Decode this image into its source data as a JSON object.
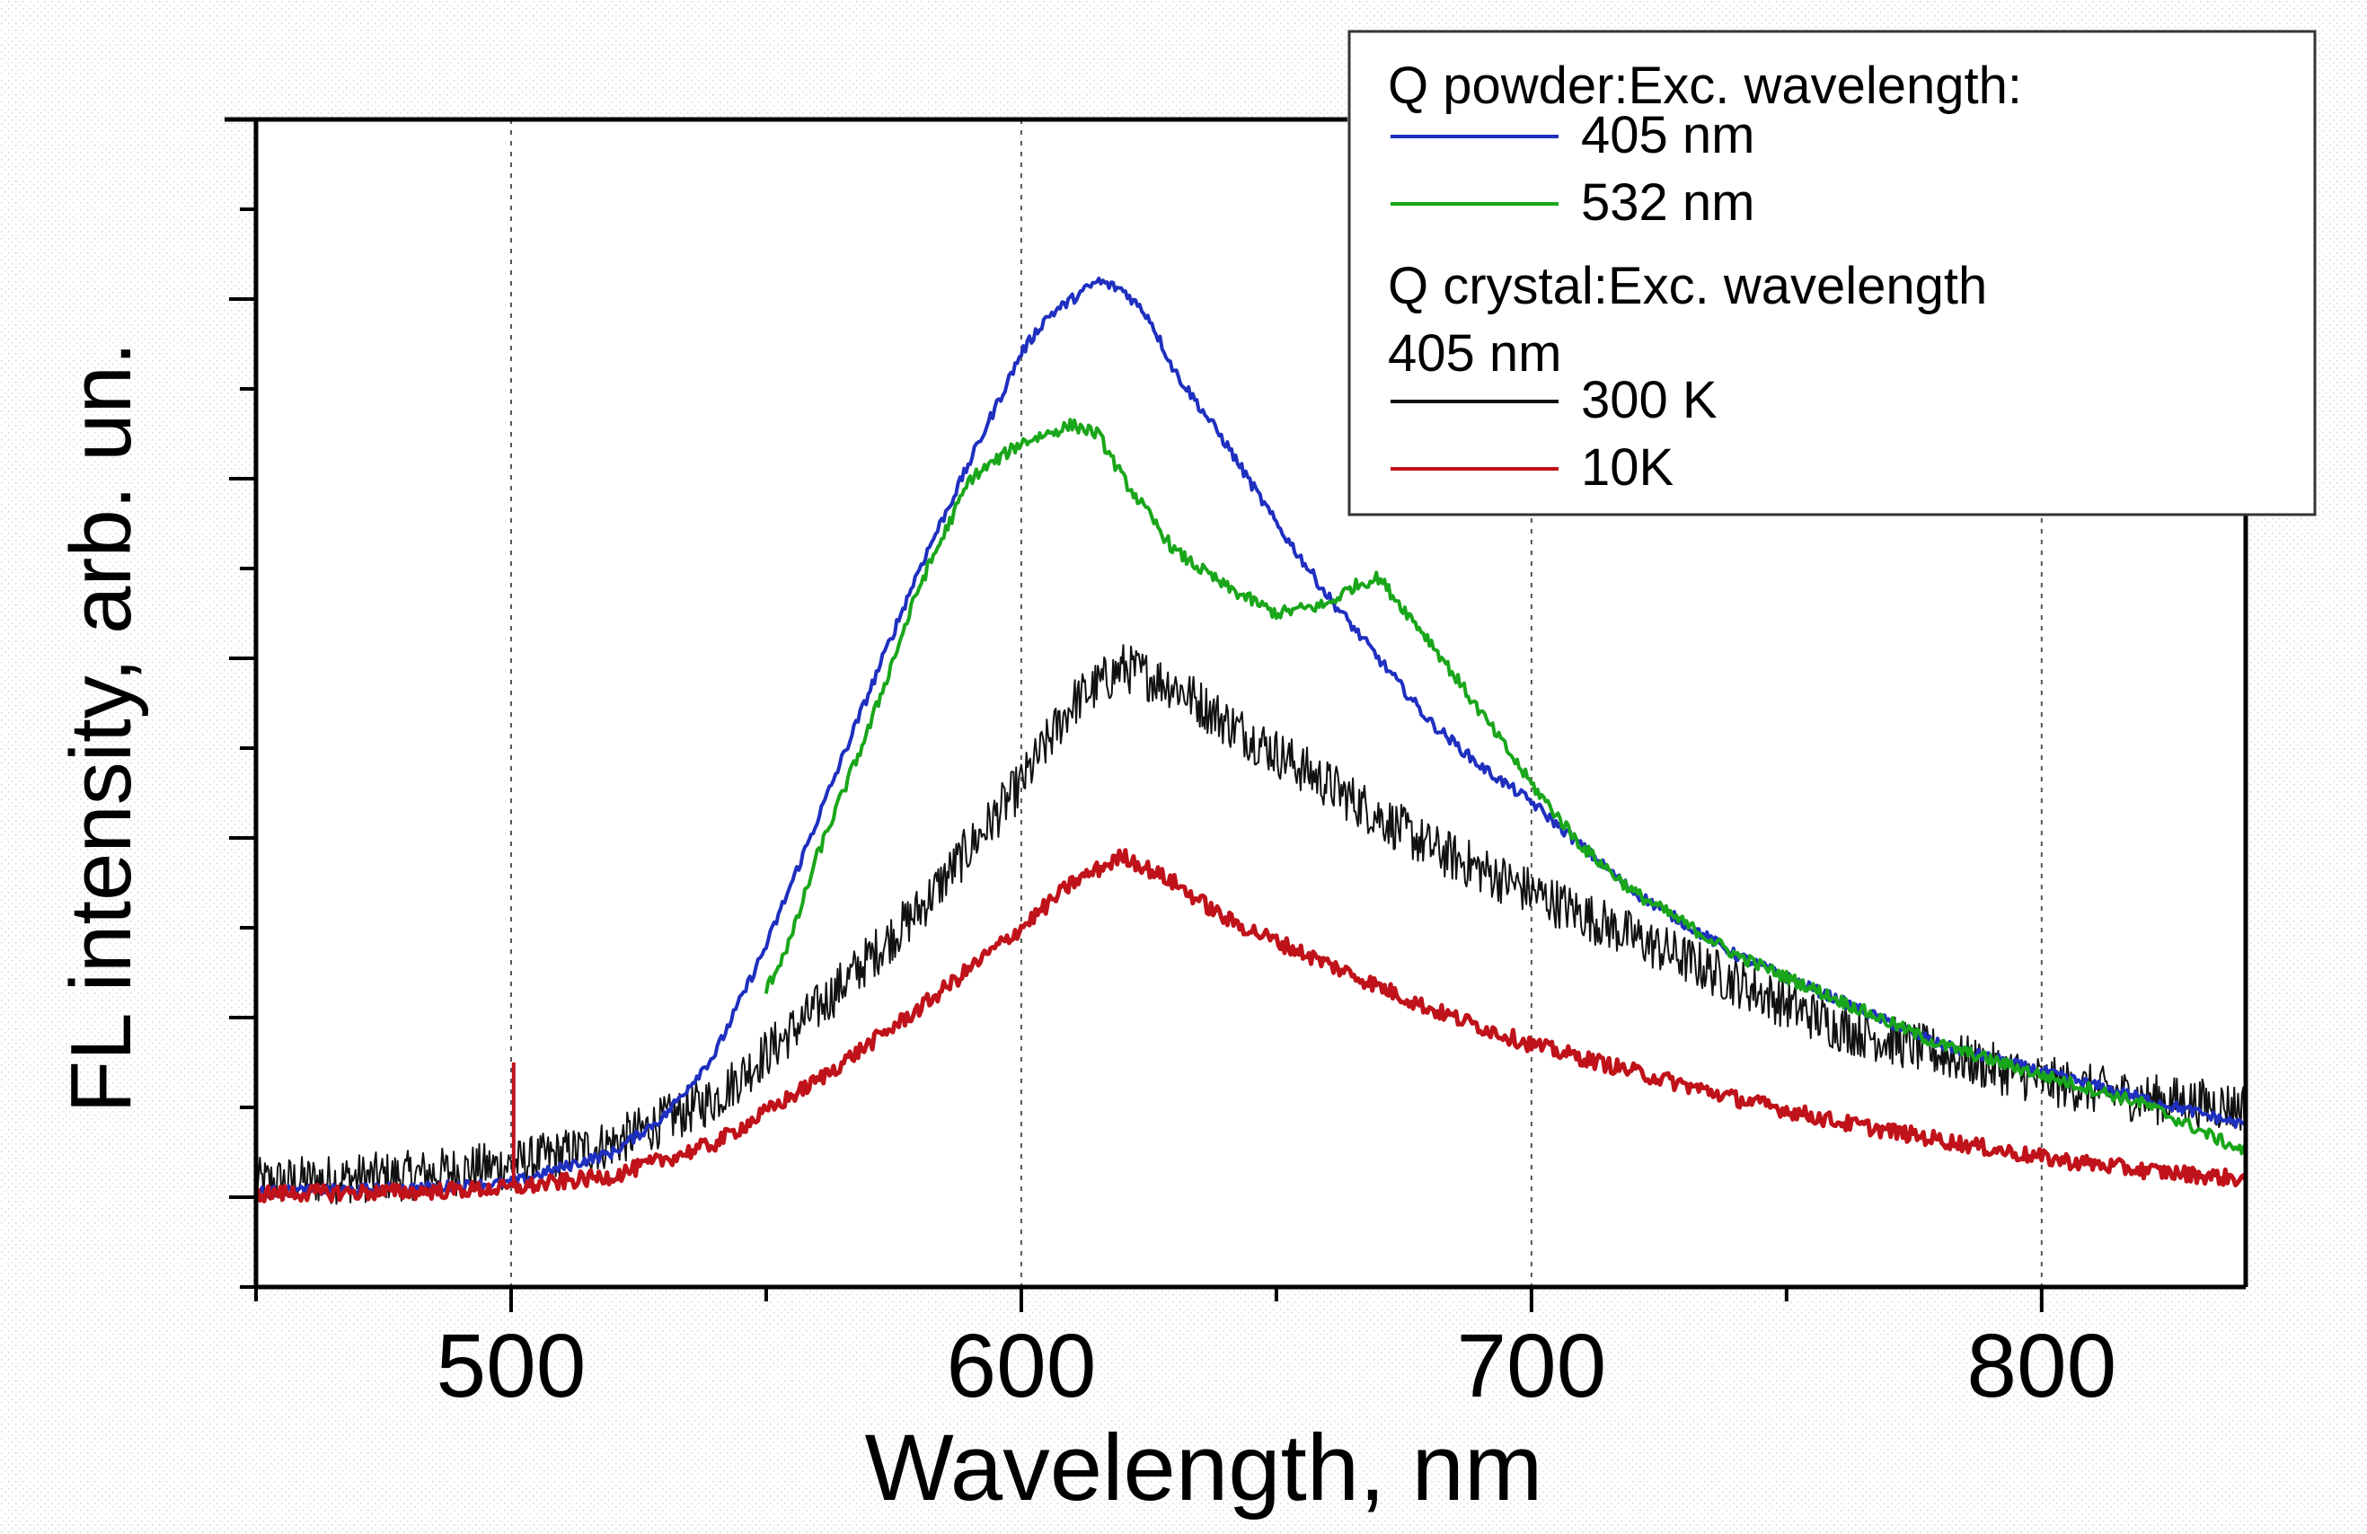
{
  "chart_data": {
    "type": "line",
    "title": "",
    "xlabel": "Wavelength, nm",
    "ylabel": "FL intensity, arb. un.",
    "xlim": [
      450,
      840
    ],
    "ylim": [
      -0.5,
      6
    ],
    "grid": "vertical dotted at major x ticks",
    "x_ticks": [
      500,
      600,
      700,
      800
    ],
    "x_tick_labels": [
      "500",
      "600",
      "700",
      "800"
    ],
    "y_tick_labels_shown": false,
    "legend_position": "top-right",
    "legend": {
      "header1": "Q powder:Exc. wavelength:",
      "header2": "Q crystal:Exc. wavelength",
      "header2_sub": " 405 nm"
    },
    "series": [
      {
        "name": "405 nm",
        "group": "Q powder",
        "color": "#1f2fbf",
        "x": [
          450,
          480,
          500,
          520,
          530,
          540,
          550,
          560,
          570,
          580,
          590,
          600,
          605,
          610,
          615,
          620,
          625,
          630,
          640,
          650,
          660,
          670,
          680,
          690,
          700,
          710,
          720,
          740,
          760,
          780,
          800,
          820,
          840
        ],
        "y": [
          0.03,
          0.05,
          0.08,
          0.25,
          0.45,
          0.8,
          1.4,
          2.1,
          2.8,
          3.5,
          4.1,
          4.7,
          4.9,
          5.0,
          5.1,
          5.05,
          4.9,
          4.6,
          4.2,
          3.75,
          3.35,
          3.0,
          2.65,
          2.4,
          2.2,
          1.95,
          1.7,
          1.35,
          1.1,
          0.85,
          0.7,
          0.55,
          0.4
        ]
      },
      {
        "name": "532 nm",
        "group": "Q powder",
        "color": "#1aa61a",
        "x": [
          550,
          555,
          560,
          570,
          580,
          590,
          600,
          605,
          610,
          615,
          620,
          630,
          640,
          650,
          660,
          665,
          670,
          680,
          690,
          700,
          710,
          720,
          740,
          760,
          780,
          800,
          820,
          840
        ],
        "y": [
          1.15,
          1.45,
          1.9,
          2.6,
          3.4,
          4.0,
          4.2,
          4.25,
          4.3,
          4.25,
          4.0,
          3.6,
          3.4,
          3.25,
          3.3,
          3.4,
          3.45,
          3.1,
          2.7,
          2.3,
          1.95,
          1.7,
          1.35,
          1.1,
          0.85,
          0.68,
          0.52,
          0.25
        ]
      },
      {
        "name": "300 K",
        "group": "Q crystal",
        "color": "#111111",
        "x": [
          450,
          480,
          500,
          520,
          540,
          560,
          580,
          600,
          610,
          620,
          630,
          640,
          660,
          680,
          700,
          720,
          740,
          760,
          780,
          800,
          820,
          840
        ],
        "y": [
          0.08,
          0.12,
          0.18,
          0.3,
          0.55,
          1.05,
          1.6,
          2.3,
          2.75,
          2.95,
          2.85,
          2.65,
          2.3,
          1.95,
          1.7,
          1.45,
          1.2,
          0.95,
          0.8,
          0.65,
          0.55,
          0.5
        ]
      },
      {
        "name": "10K",
        "group": "Q crystal",
        "color": "#c0121a",
        "x": [
          450,
          480,
          500,
          520,
          540,
          560,
          580,
          600,
          610,
          620,
          630,
          640,
          660,
          680,
          700,
          720,
          740,
          760,
          780,
          800,
          820,
          840
        ],
        "y": [
          0.02,
          0.03,
          0.05,
          0.12,
          0.3,
          0.65,
          1.05,
          1.5,
          1.75,
          1.9,
          1.75,
          1.55,
          1.3,
          1.05,
          0.85,
          0.7,
          0.55,
          0.42,
          0.32,
          0.22,
          0.15,
          0.1
        ]
      }
    ]
  }
}
